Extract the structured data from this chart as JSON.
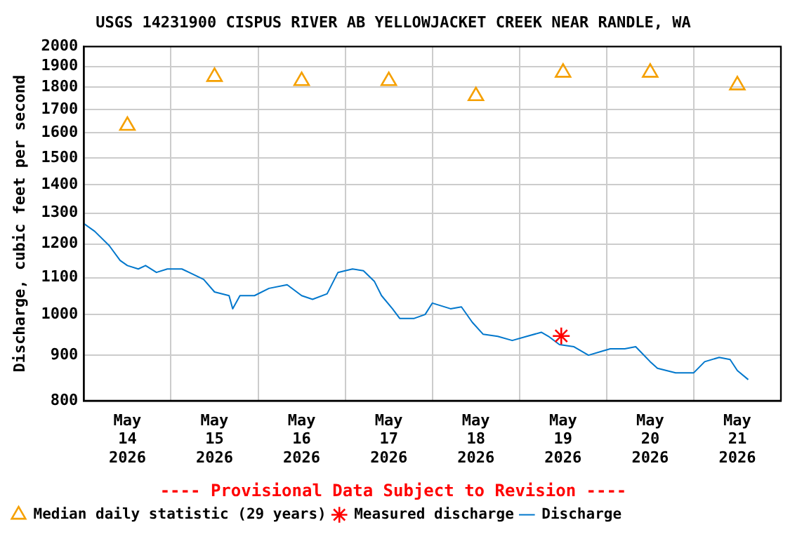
{
  "chart_data": {
    "type": "line",
    "title": "USGS 14231900 CISPUS RIVER AB YELLOWJACKET CREEK NEAR RANDLE, WA",
    "ylabel": "Discharge, cubic feet per second",
    "log": "y",
    "grid": true,
    "legend": "bottom",
    "annotations": [
      "---- Provisional Data Subject to Revision ----"
    ],
    "xlim": [
      "2026-05-14T00:00",
      "2026-05-22T00:00"
    ],
    "xticks": [
      {
        "value": "2026-05-14T12:00",
        "label": "May 14 2026"
      },
      {
        "value": "2026-05-15T00:00",
        "label": null
      },
      {
        "value": "2026-05-15T12:00",
        "label": "May 15 2026"
      },
      {
        "value": "2026-05-16T00:00",
        "label": null
      },
      {
        "value": "2026-05-16T12:00",
        "label": "May 16 2026"
      },
      {
        "value": "2026-05-17T00:00",
        "label": null
      },
      {
        "value": "2026-05-17T12:00",
        "label": "May 17 2026"
      },
      {
        "value": "2026-05-18T00:00",
        "label": null
      },
      {
        "value": "2026-05-18T12:00",
        "label": "May 18 2026"
      },
      {
        "value": "2026-05-19T00:00",
        "label": null
      },
      {
        "value": "2026-05-19T12:00",
        "label": "May 19 2026"
      },
      {
        "value": "2026-05-20T00:00",
        "label": null
      },
      {
        "value": "2026-05-20T12:00",
        "label": "May 20 2026"
      },
      {
        "value": "2026-05-21T00:00",
        "label": null
      },
      {
        "value": "2026-05-21T12:00",
        "label": "May 21 2026"
      }
    ],
    "ylim": [
      800,
      2000
    ],
    "yticks": [
      800,
      900,
      1000,
      1100,
      1200,
      1300,
      1400,
      1500,
      1600,
      1700,
      1800,
      1900,
      2000
    ],
    "series": [
      {
        "name": "Median daily statistic (29 years)",
        "type": "scatter",
        "marker": "triangle",
        "color": "#f5a000",
        "x": [
          "2026-05-14T12:00",
          "2026-05-15T12:00",
          "2026-05-16T12:00",
          "2026-05-17T12:00",
          "2026-05-18T12:00",
          "2026-05-19T12:00",
          "2026-05-20T12:00",
          "2026-05-21T12:00"
        ],
        "values": [
          1630,
          1850,
          1830,
          1830,
          1760,
          1870,
          1870,
          1810
        ]
      },
      {
        "name": "Measured discharge",
        "type": "scatter",
        "marker": "cross",
        "color": "#ff0000",
        "x": [
          "2026-05-19T11:30"
        ],
        "values": [
          946
        ]
      },
      {
        "name": "Discharge",
        "marker": "none",
        "color": "#0077cc",
        "x": [
          "2026-05-14T00:00",
          "2026-05-14T03:00",
          "2026-05-14T07:00",
          "2026-05-14T10:00",
          "2026-05-14T12:00",
          "2026-05-14T15:00",
          "2026-05-14T17:00",
          "2026-05-14T20:00",
          "2026-05-14T23:00",
          "2026-05-15T03:00",
          "2026-05-15T05:00",
          "2026-05-15T09:00",
          "2026-05-15T12:00",
          "2026-05-15T16:00",
          "2026-05-15T17:00",
          "2026-05-15T19:00",
          "2026-05-15T23:00",
          "2026-05-16T03:00",
          "2026-05-16T08:00",
          "2026-05-16T12:00",
          "2026-05-16T15:00",
          "2026-05-16T19:00",
          "2026-05-16T22:00",
          "2026-05-17T02:00",
          "2026-05-17T05:00",
          "2026-05-17T08:00",
          "2026-05-17T10:00",
          "2026-05-17T13:00",
          "2026-05-17T15:00",
          "2026-05-17T19:00",
          "2026-05-17T22:00",
          "2026-05-18T00:00",
          "2026-05-18T05:00",
          "2026-05-18T08:00",
          "2026-05-18T11:00",
          "2026-05-18T14:00",
          "2026-05-18T18:00",
          "2026-05-18T22:00",
          "2026-05-19T02:00",
          "2026-05-19T06:00",
          "2026-05-19T08:00",
          "2026-05-19T11:00",
          "2026-05-19T15:00",
          "2026-05-19T19:00",
          "2026-05-19T23:00",
          "2026-05-20T01:00",
          "2026-05-20T05:00",
          "2026-05-20T08:00",
          "2026-05-20T12:00",
          "2026-05-20T14:00",
          "2026-05-20T19:00",
          "2026-05-21T00:00",
          "2026-05-21T03:00",
          "2026-05-21T07:00",
          "2026-05-21T10:00",
          "2026-05-21T12:00",
          "2026-05-21T15:00"
        ],
        "values": [
          1265,
          1240,
          1195,
          1150,
          1135,
          1125,
          1135,
          1115,
          1125,
          1125,
          1115,
          1095,
          1060,
          1050,
          1015,
          1050,
          1050,
          1070,
          1080,
          1050,
          1040,
          1055,
          1115,
          1125,
          1120,
          1090,
          1050,
          1015,
          990,
          990,
          1000,
          1030,
          1015,
          1020,
          980,
          950,
          945,
          935,
          945,
          955,
          945,
          925,
          920,
          900,
          910,
          915,
          915,
          920,
          885,
          870,
          860,
          860,
          885,
          895,
          890,
          865,
          845
        ]
      }
    ]
  }
}
